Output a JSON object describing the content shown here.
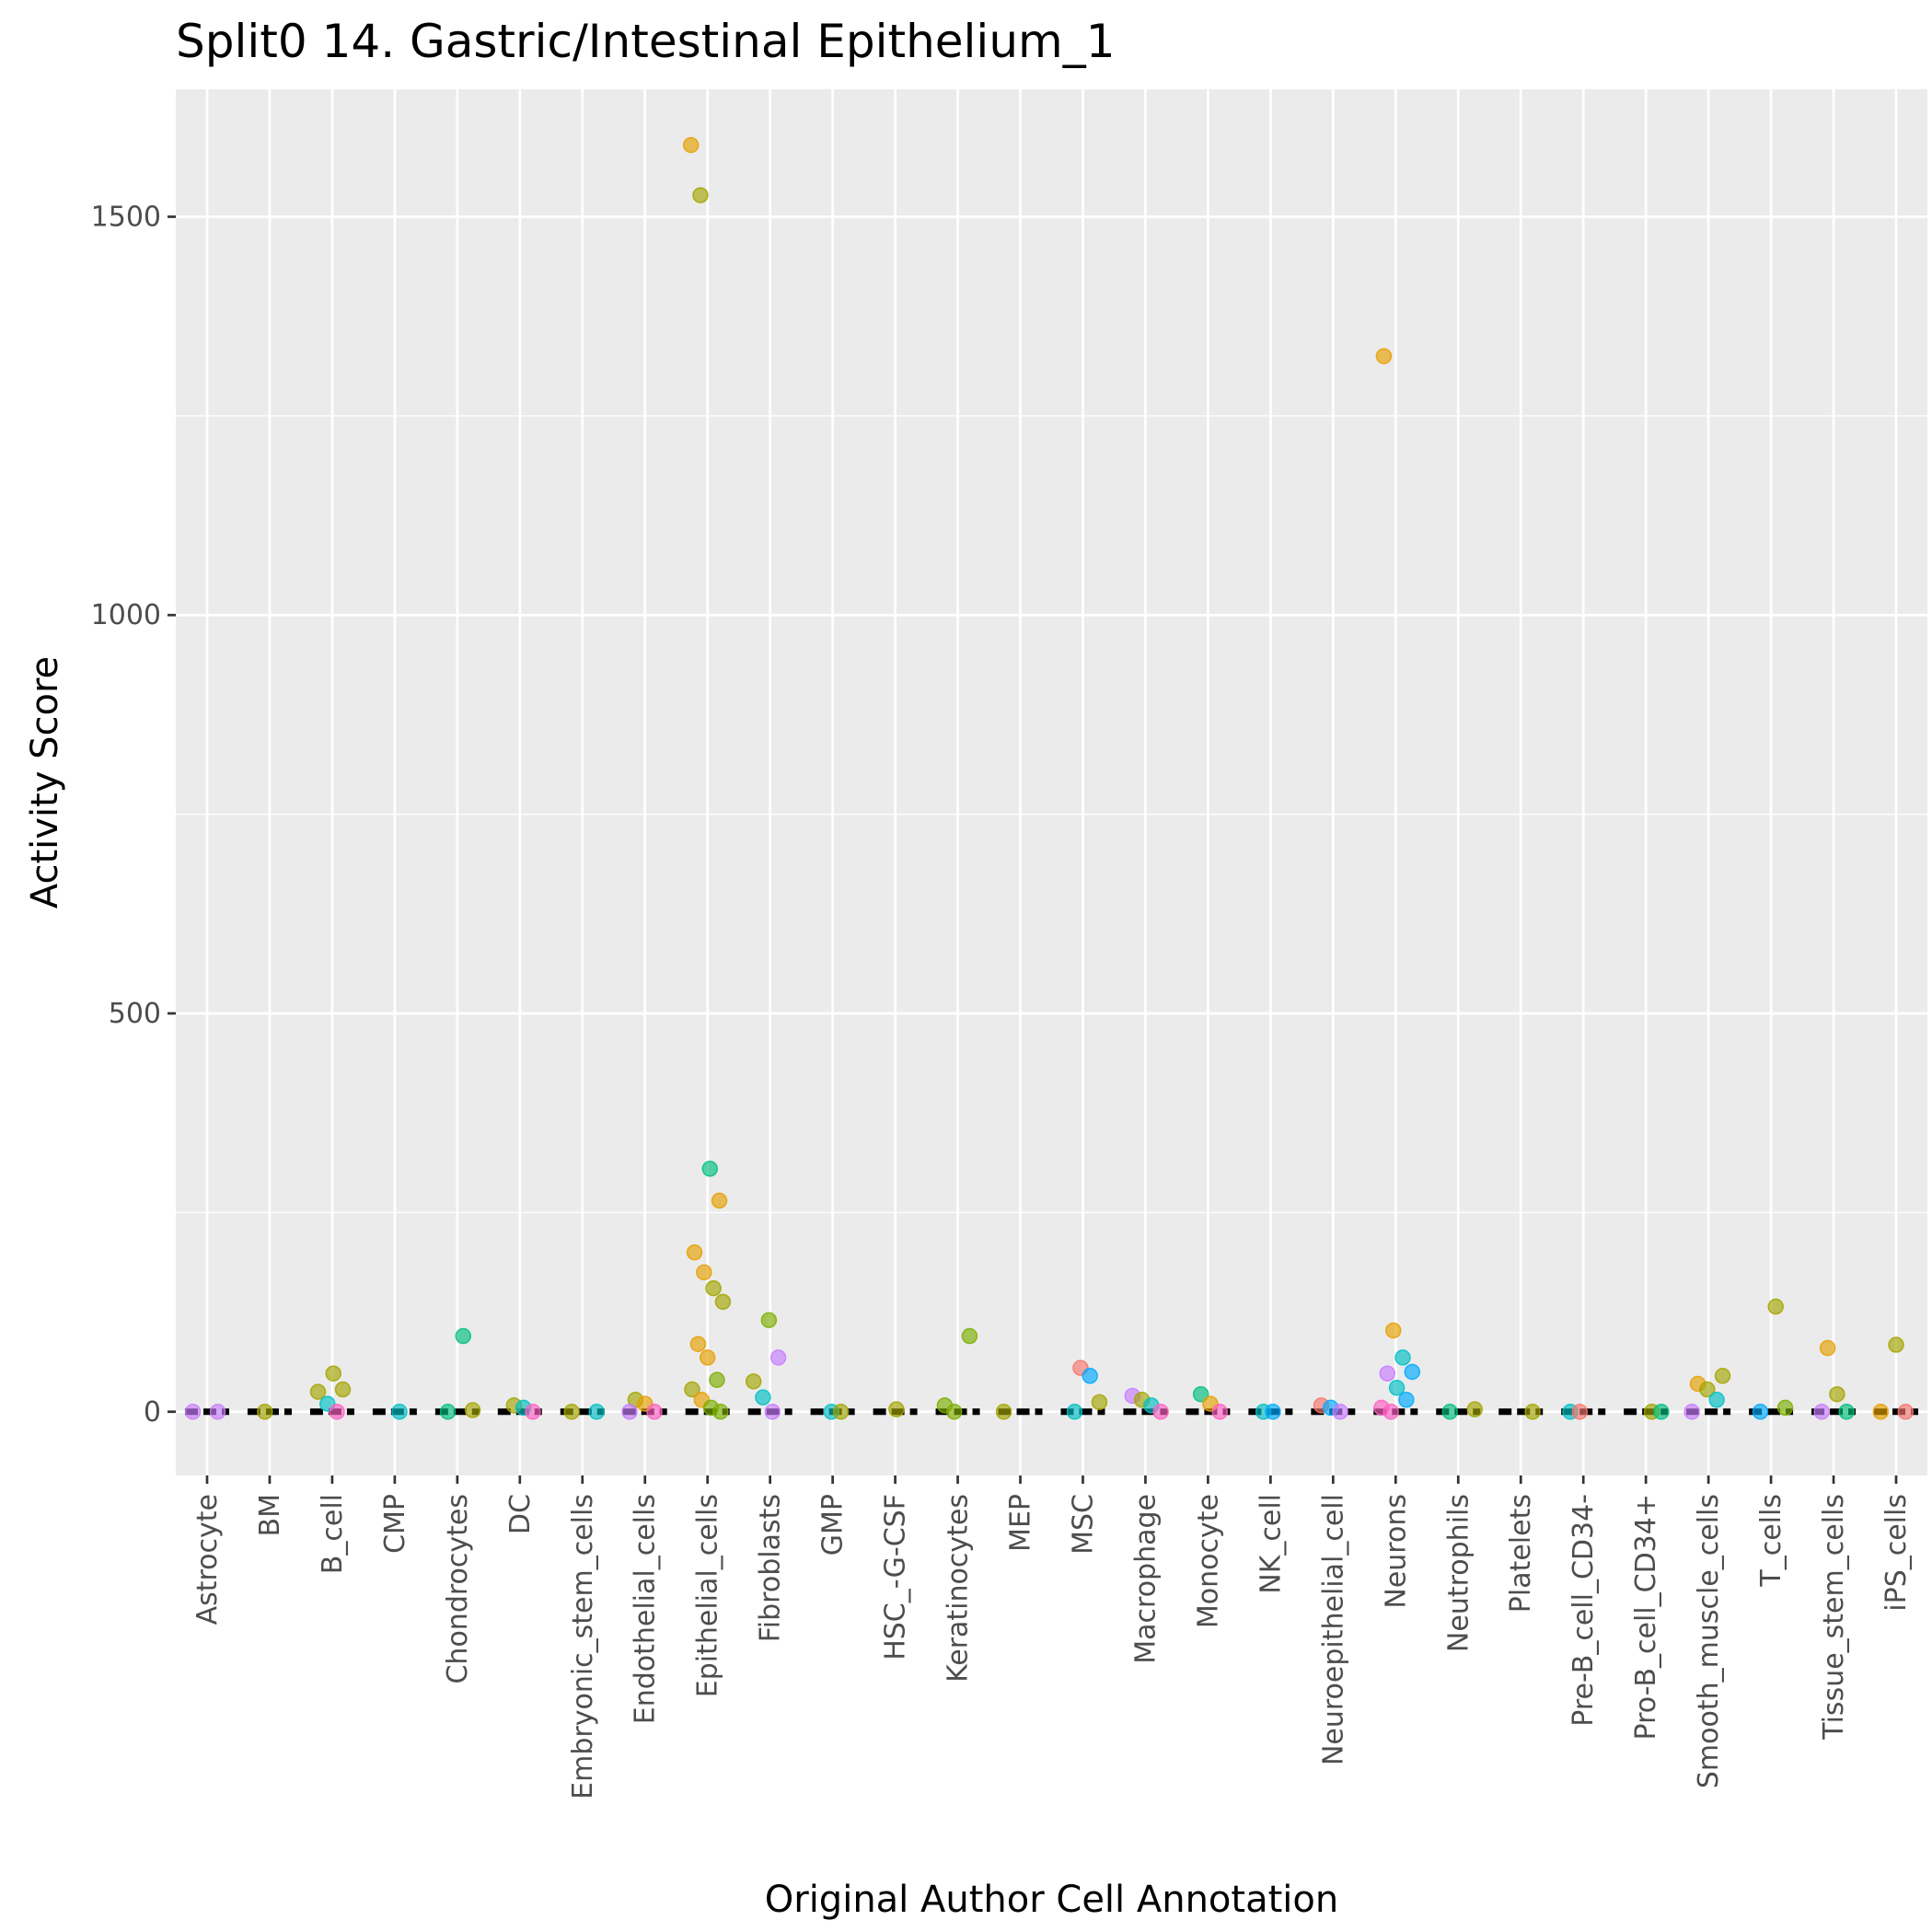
{
  "chart_data": {
    "type": "scatter",
    "title": "Split0 14. Gastric/Intestinal Epithelium_1",
    "xlabel": "Original Author Cell Annotation",
    "ylabel": "Activity Score",
    "ylim": [
      -80,
      1660
    ],
    "y_ticks": [
      0,
      500,
      1000,
      1500
    ],
    "y_tick_labels": [
      "0",
      "500",
      "1000",
      "1500"
    ],
    "grid": true,
    "legend": "none",
    "categories": [
      "Astrocyte",
      "BM",
      "B_cell",
      "CMP",
      "Chondrocytes",
      "DC",
      "Embryonic_stem_cells",
      "Endothelial_cells",
      "Epithelial_cells",
      "Fibroblasts",
      "GMP",
      "HSC_-G-CSF",
      "Keratinocytes",
      "MEP",
      "MSC",
      "Macrophage",
      "Monocyte",
      "NK_cell",
      "Neuroepithelial_cell",
      "Neurons",
      "Neutrophils",
      "Platelets",
      "Pre-B_cell_CD34-",
      "Pro-B_cell_CD34+",
      "Smooth_muscle_cells",
      "T_cells",
      "Tissue_stem_cells",
      "iPS_cells"
    ],
    "points": [
      {
        "category": "Epithelial_cells",
        "value": 1590,
        "color": "#E69F00"
      },
      {
        "category": "Epithelial_cells",
        "value": 1527,
        "color": "#A3A500"
      },
      {
        "category": "Epithelial_cells",
        "value": 305,
        "color": "#00BF7D"
      },
      {
        "category": "Epithelial_cells",
        "value": 265,
        "color": "#E69F00"
      },
      {
        "category": "Epithelial_cells",
        "value": 200,
        "color": "#E69F00"
      },
      {
        "category": "Epithelial_cells",
        "value": 175,
        "color": "#E69F00"
      },
      {
        "category": "Epithelial_cells",
        "value": 155,
        "color": "#A3A500"
      },
      {
        "category": "Epithelial_cells",
        "value": 138,
        "color": "#A3A500"
      },
      {
        "category": "Epithelial_cells",
        "value": 85,
        "color": "#E69F00"
      },
      {
        "category": "Epithelial_cells",
        "value": 68,
        "color": "#E69F00"
      },
      {
        "category": "Epithelial_cells",
        "value": 40,
        "color": "#7CAE00"
      },
      {
        "category": "Epithelial_cells",
        "value": 28,
        "color": "#A3A500"
      },
      {
        "category": "Epithelial_cells",
        "value": 15,
        "color": "#E69F00"
      },
      {
        "category": "Epithelial_cells",
        "value": 5,
        "color": "#7CAE00"
      },
      {
        "category": "Epithelial_cells",
        "value": 0,
        "color": "#7CAE00"
      },
      {
        "category": "Neurons",
        "value": 1325,
        "color": "#E69F00"
      },
      {
        "category": "Neurons",
        "value": 102,
        "color": "#E69F00"
      },
      {
        "category": "Neurons",
        "value": 68,
        "color": "#00BFC4"
      },
      {
        "category": "Neurons",
        "value": 50,
        "color": "#00A9FF"
      },
      {
        "category": "Neurons",
        "value": 48,
        "color": "#C77CFF"
      },
      {
        "category": "Neurons",
        "value": 30,
        "color": "#00BFC4"
      },
      {
        "category": "Neurons",
        "value": 15,
        "color": "#00A9FF"
      },
      {
        "category": "Neurons",
        "value": 5,
        "color": "#FF61C3"
      },
      {
        "category": "Neurons",
        "value": 0,
        "color": "#FF61C3"
      },
      {
        "category": "T_cells",
        "value": 132,
        "color": "#A3A500"
      },
      {
        "category": "T_cells",
        "value": 5,
        "color": "#7CAE00"
      },
      {
        "category": "T_cells",
        "value": 0,
        "color": "#00A9FF"
      },
      {
        "category": "Fibroblasts",
        "value": 115,
        "color": "#7CAE00"
      },
      {
        "category": "Fibroblasts",
        "value": 68,
        "color": "#C77CFF"
      },
      {
        "category": "Fibroblasts",
        "value": 38,
        "color": "#A3A500"
      },
      {
        "category": "Fibroblasts",
        "value": 18,
        "color": "#00BFC4"
      },
      {
        "category": "Fibroblasts",
        "value": 0,
        "color": "#C77CFF"
      },
      {
        "category": "Keratinocytes",
        "value": 95,
        "color": "#7CAE00"
      },
      {
        "category": "Keratinocytes",
        "value": 8,
        "color": "#7CAE00"
      },
      {
        "category": "Keratinocytes",
        "value": 0,
        "color": "#7CAE00"
      },
      {
        "category": "Chondrocytes",
        "value": 95,
        "color": "#00BF7D"
      },
      {
        "category": "Chondrocytes",
        "value": 2,
        "color": "#A3A500"
      },
      {
        "category": "Chondrocytes",
        "value": 0,
        "color": "#00BF7D"
      },
      {
        "category": "iPS_cells",
        "value": 84,
        "color": "#A3A500"
      },
      {
        "category": "iPS_cells",
        "value": 0,
        "color": "#F8766D"
      },
      {
        "category": "iPS_cells",
        "value": 0,
        "color": "#E69F00"
      },
      {
        "category": "Tissue_stem_cells",
        "value": 80,
        "color": "#E69F00"
      },
      {
        "category": "Tissue_stem_cells",
        "value": 22,
        "color": "#A3A500"
      },
      {
        "category": "Tissue_stem_cells",
        "value": 0,
        "color": "#00BF7D"
      },
      {
        "category": "Tissue_stem_cells",
        "value": 0,
        "color": "#C77CFF"
      },
      {
        "category": "MSC",
        "value": 55,
        "color": "#F8766D"
      },
      {
        "category": "MSC",
        "value": 45,
        "color": "#00A9FF"
      },
      {
        "category": "MSC",
        "value": 12,
        "color": "#A3A500"
      },
      {
        "category": "MSC",
        "value": 0,
        "color": "#00BFC4"
      },
      {
        "category": "B_cell",
        "value": 48,
        "color": "#A3A500"
      },
      {
        "category": "B_cell",
        "value": 28,
        "color": "#A3A500"
      },
      {
        "category": "B_cell",
        "value": 25,
        "color": "#A3A500"
      },
      {
        "category": "B_cell",
        "value": 10,
        "color": "#00BFC4"
      },
      {
        "category": "B_cell",
        "value": 0,
        "color": "#FF61C3"
      },
      {
        "category": "Smooth_muscle_cells",
        "value": 45,
        "color": "#A3A500"
      },
      {
        "category": "Smooth_muscle_cells",
        "value": 35,
        "color": "#E69F00"
      },
      {
        "category": "Smooth_muscle_cells",
        "value": 28,
        "color": "#A3A500"
      },
      {
        "category": "Smooth_muscle_cells",
        "value": 15,
        "color": "#00BFC4"
      },
      {
        "category": "Smooth_muscle_cells",
        "value": 0,
        "color": "#C77CFF"
      },
      {
        "category": "Monocyte",
        "value": 22,
        "color": "#00BF7D"
      },
      {
        "category": "Monocyte",
        "value": 10,
        "color": "#E69F00"
      },
      {
        "category": "Monocyte",
        "value": 0,
        "color": "#FF61C3"
      },
      {
        "category": "Macrophage",
        "value": 20,
        "color": "#C77CFF"
      },
      {
        "category": "Macrophage",
        "value": 15,
        "color": "#A3A500"
      },
      {
        "category": "Macrophage",
        "value": 8,
        "color": "#00BFC4"
      },
      {
        "category": "Macrophage",
        "value": 0,
        "color": "#FF61C3"
      },
      {
        "category": "Endothelial_cells",
        "value": 15,
        "color": "#A3A500"
      },
      {
        "category": "Endothelial_cells",
        "value": 10,
        "color": "#E69F00"
      },
      {
        "category": "Endothelial_cells",
        "value": 0,
        "color": "#FF61C3"
      },
      {
        "category": "Endothelial_cells",
        "value": 0,
        "color": "#C77CFF"
      },
      {
        "category": "DC",
        "value": 8,
        "color": "#A3A500"
      },
      {
        "category": "DC",
        "value": 5,
        "color": "#00BFC4"
      },
      {
        "category": "DC",
        "value": 0,
        "color": "#FF61C3"
      },
      {
        "category": "Neuroepithelial_cell",
        "value": 8,
        "color": "#F8766D"
      },
      {
        "category": "Neuroepithelial_cell",
        "value": 5,
        "color": "#00A9FF"
      },
      {
        "category": "Neuroepithelial_cell",
        "value": 0,
        "color": "#C77CFF"
      },
      {
        "category": "Neutrophils",
        "value": 3,
        "color": "#A3A500"
      },
      {
        "category": "Neutrophils",
        "value": 0,
        "color": "#00BF7D"
      },
      {
        "category": "HSC_-G-CSF",
        "value": 3,
        "color": "#A3A500"
      },
      {
        "category": "Astrocyte",
        "value": 0,
        "color": "#C77CFF"
      },
      {
        "category": "Astrocyte",
        "value": 0,
        "color": "#C77CFF"
      },
      {
        "category": "BM",
        "value": 0,
        "color": "#A3A500"
      },
      {
        "category": "CMP",
        "value": 0,
        "color": "#00BFC4"
      },
      {
        "category": "Embryonic_stem_cells",
        "value": 0,
        "color": "#00BFC4"
      },
      {
        "category": "Embryonic_stem_cells",
        "value": 0,
        "color": "#A3A500"
      },
      {
        "category": "GMP",
        "value": 0,
        "color": "#00BFC4"
      },
      {
        "category": "GMP",
        "value": 0,
        "color": "#A3A500"
      },
      {
        "category": "MEP",
        "value": 0,
        "color": "#A3A500"
      },
      {
        "category": "NK_cell",
        "value": 0,
        "color": "#00BFC4"
      },
      {
        "category": "NK_cell",
        "value": 0,
        "color": "#00A9FF"
      },
      {
        "category": "Platelets",
        "value": 0,
        "color": "#A3A500"
      },
      {
        "category": "Pre-B_cell_CD34-",
        "value": 0,
        "color": "#00BFC4"
      },
      {
        "category": "Pre-B_cell_CD34-",
        "value": 0,
        "color": "#F8766D"
      },
      {
        "category": "Pro-B_cell_CD34+",
        "value": 0,
        "color": "#A3A500"
      },
      {
        "category": "Pro-B_cell_CD34+",
        "value": 0,
        "color": "#00BF7D"
      }
    ]
  }
}
